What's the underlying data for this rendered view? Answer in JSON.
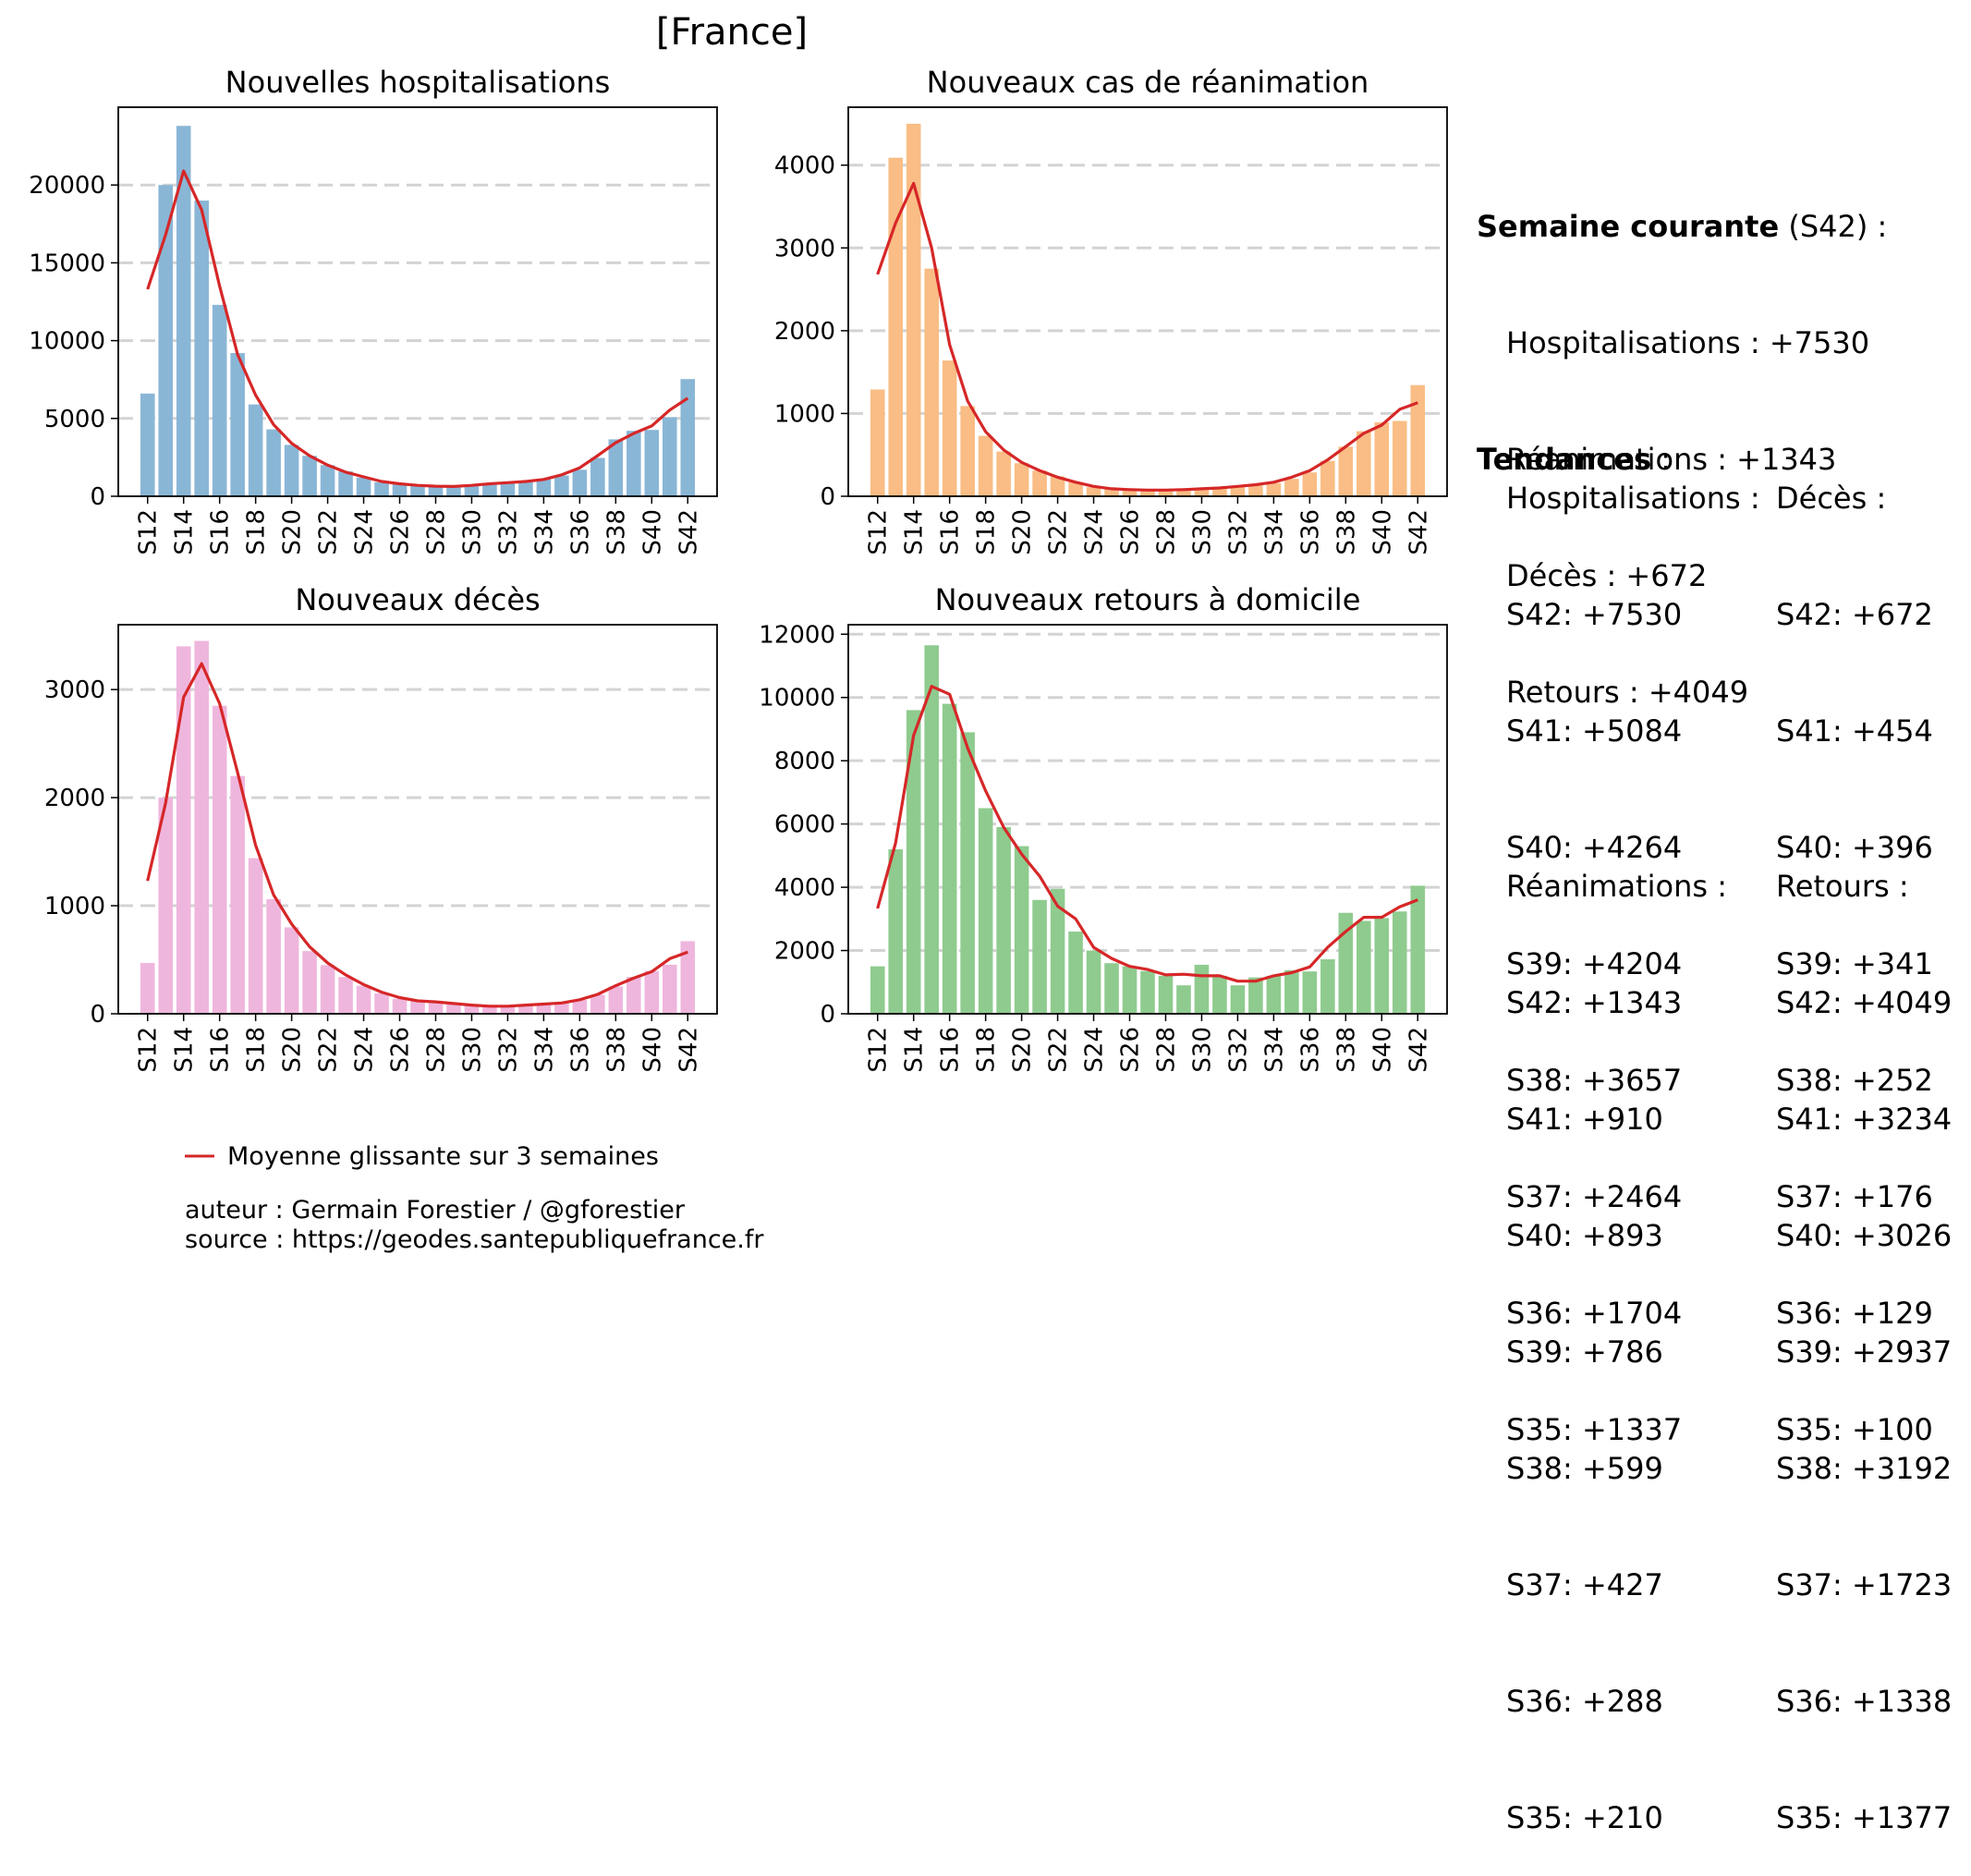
{
  "title": "[France]",
  "colors": {
    "hosp": "#8ab6d6",
    "rea": "#f9bd85",
    "dc": "#efb6dd",
    "rad": "#8fcb8f",
    "avg_line": "#d62728",
    "grid": "#d3d3d3"
  },
  "chart_data": [
    {
      "type": "bar",
      "title": "Nouvelles hospitalisations",
      "color_key": "hosp",
      "categories": [
        "S12",
        "S13",
        "S14",
        "S15",
        "S16",
        "S17",
        "S18",
        "S19",
        "S20",
        "S21",
        "S22",
        "S23",
        "S24",
        "S25",
        "S26",
        "S27",
        "S28",
        "S29",
        "S30",
        "S31",
        "S32",
        "S33",
        "S34",
        "S35",
        "S36",
        "S37",
        "S38",
        "S39",
        "S40",
        "S41",
        "S42"
      ],
      "tick_labels": [
        "S12",
        "S14",
        "S16",
        "S18",
        "S20",
        "S22",
        "S24",
        "S26",
        "S28",
        "S30",
        "S32",
        "S34",
        "S36",
        "S38",
        "S40",
        "S42"
      ],
      "values": [
        6600,
        20000,
        23800,
        19000,
        12300,
        9200,
        5900,
        4300,
        3300,
        2600,
        2000,
        1600,
        1200,
        900,
        800,
        700,
        600,
        600,
        700,
        800,
        900,
        1000,
        1100,
        1337,
        1704,
        2464,
        3657,
        4204,
        4264,
        5084,
        7530
      ],
      "moving_average": [
        13300,
        16800,
        20900,
        18400,
        13500,
        9100,
        6500,
        4600,
        3400,
        2600,
        2000,
        1550,
        1250,
        950,
        800,
        700,
        650,
        630,
        700,
        800,
        870,
        950,
        1080,
        1380,
        1830,
        2610,
        3440,
        4040,
        4520,
        5540,
        6300
      ],
      "yticks": [
        0,
        5000,
        10000,
        15000,
        20000
      ],
      "ylim": [
        0,
        25000
      ],
      "grid": "y-dashed"
    },
    {
      "type": "bar",
      "title": "Nouveaux cas de réanimation",
      "color_key": "rea",
      "categories": [
        "S12",
        "S13",
        "S14",
        "S15",
        "S16",
        "S17",
        "S18",
        "S19",
        "S20",
        "S21",
        "S22",
        "S23",
        "S24",
        "S25",
        "S26",
        "S27",
        "S28",
        "S29",
        "S30",
        "S31",
        "S32",
        "S33",
        "S34",
        "S35",
        "S36",
        "S37",
        "S38",
        "S39",
        "S40",
        "S41",
        "S42"
      ],
      "tick_labels": [
        "S12",
        "S14",
        "S16",
        "S18",
        "S20",
        "S22",
        "S24",
        "S26",
        "S28",
        "S30",
        "S32",
        "S34",
        "S36",
        "S38",
        "S40",
        "S42"
      ],
      "values": [
        1290,
        4090,
        4500,
        2750,
        1640,
        1090,
        730,
        540,
        400,
        310,
        240,
        170,
        110,
        90,
        80,
        70,
        70,
        80,
        90,
        100,
        120,
        130,
        160,
        210,
        288,
        427,
        599,
        786,
        893,
        910,
        1343
      ],
      "moving_average": [
        2680,
        3300,
        3780,
        3000,
        1830,
        1150,
        780,
        560,
        410,
        310,
        230,
        170,
        120,
        90,
        80,
        75,
        75,
        80,
        90,
        100,
        120,
        140,
        170,
        230,
        310,
        440,
        600,
        760,
        860,
        1050,
        1130
      ],
      "yticks": [
        0,
        1000,
        2000,
        3000,
        4000
      ],
      "ylim": [
        0,
        4700
      ],
      "grid": "y-dashed"
    },
    {
      "type": "bar",
      "title": "Nouveaux décès",
      "color_key": "dc",
      "categories": [
        "S12",
        "S13",
        "S14",
        "S15",
        "S16",
        "S17",
        "S18",
        "S19",
        "S20",
        "S21",
        "S22",
        "S23",
        "S24",
        "S25",
        "S26",
        "S27",
        "S28",
        "S29",
        "S30",
        "S31",
        "S32",
        "S33",
        "S34",
        "S35",
        "S36",
        "S37",
        "S38",
        "S39",
        "S40",
        "S41",
        "S42"
      ],
      "tick_labels": [
        "S12",
        "S14",
        "S16",
        "S18",
        "S20",
        "S22",
        "S24",
        "S26",
        "S28",
        "S30",
        "S32",
        "S34",
        "S36",
        "S38",
        "S40",
        "S42"
      ],
      "values": [
        470,
        2000,
        3400,
        3450,
        2850,
        2200,
        1440,
        1060,
        800,
        580,
        450,
        340,
        260,
        190,
        140,
        120,
        100,
        90,
        80,
        70,
        70,
        80,
        90,
        100,
        129,
        176,
        252,
        341,
        396,
        454,
        672
      ],
      "moving_average": [
        1230,
        1950,
        2930,
        3240,
        2870,
        2230,
        1560,
        1100,
        830,
        620,
        470,
        360,
        270,
        200,
        150,
        120,
        110,
        95,
        80,
        70,
        70,
        80,
        90,
        100,
        130,
        180,
        260,
        330,
        390,
        510,
        570
      ],
      "yticks": [
        0,
        1000,
        2000,
        3000
      ],
      "ylim": [
        0,
        3600
      ],
      "grid": "y-dashed"
    },
    {
      "type": "bar",
      "title": "Nouveaux retours à domicile",
      "color_key": "rad",
      "categories": [
        "S12",
        "S13",
        "S14",
        "S15",
        "S16",
        "S17",
        "S18",
        "S19",
        "S20",
        "S21",
        "S22",
        "S23",
        "S24",
        "S25",
        "S26",
        "S27",
        "S28",
        "S29",
        "S30",
        "S31",
        "S32",
        "S33",
        "S34",
        "S35",
        "S36",
        "S37",
        "S38",
        "S39",
        "S40",
        "S41",
        "S42"
      ],
      "tick_labels": [
        "S12",
        "S14",
        "S16",
        "S18",
        "S20",
        "S22",
        "S24",
        "S26",
        "S28",
        "S30",
        "S32",
        "S34",
        "S36",
        "S38",
        "S40",
        "S42"
      ],
      "values": [
        1500,
        5200,
        9600,
        11650,
        9800,
        8900,
        6500,
        5900,
        5300,
        3600,
        3950,
        2600,
        2000,
        1600,
        1500,
        1350,
        1200,
        900,
        1550,
        1200,
        900,
        1150,
        1200,
        1377,
        1338,
        1723,
        3192,
        2937,
        3026,
        3234,
        4049
      ],
      "moving_average": [
        3330,
        5400,
        8800,
        10350,
        10100,
        8400,
        7050,
        5900,
        5050,
        4350,
        3400,
        3000,
        2100,
        1750,
        1500,
        1400,
        1230,
        1250,
        1200,
        1200,
        1030,
        1030,
        1200,
        1300,
        1480,
        2100,
        2600,
        3050,
        3050,
        3380,
        3600
      ],
      "yticks": [
        0,
        2000,
        4000,
        6000,
        8000,
        10000,
        12000
      ],
      "ylim": [
        0,
        12300
      ],
      "grid": "y-dashed"
    }
  ],
  "legend": {
    "label": "Moyenne glissante sur 3 semaines"
  },
  "credits": {
    "author": "auteur : Germain Forestier / @gforestier",
    "source": "source : https://geodes.santepubliquefrance.fr"
  },
  "summary": {
    "current_heading": "Semaine courante",
    "current_week": " (S42) :",
    "lines": [
      "Hospitalisations : +7530",
      "Réanimations : +1343",
      "Décès : +672",
      "Retours : +4049"
    ],
    "trends_heading": "Tendances",
    "trends_suffix": " :",
    "hosp_title": "Hospitalisations :",
    "hosp": [
      "S42: +7530",
      "S41: +5084",
      "S40: +4264",
      "S39: +4204",
      "S38: +3657",
      "S37: +2464",
      "S36: +1704",
      "S35: +1337"
    ],
    "dc_title": "Décès :",
    "dc": [
      "S42: +672",
      "S41: +454",
      "S40: +396",
      "S39: +341",
      "S38: +252",
      "S37: +176",
      "S36: +129",
      "S35: +100"
    ],
    "rea_title": "Réanimations :",
    "rea": [
      "S42: +1343",
      "S41: +910",
      "S40: +893",
      "S39: +786",
      "S38: +599",
      "S37: +427",
      "S36: +288",
      "S35: +210"
    ],
    "rad_title": "Retours :",
    "rad": [
      "S42: +4049",
      "S41: +3234",
      "S40: +3026",
      "S39: +2937",
      "S38: +3192",
      "S37: +1723",
      "S36: +1338",
      "S35: +1377"
    ]
  }
}
